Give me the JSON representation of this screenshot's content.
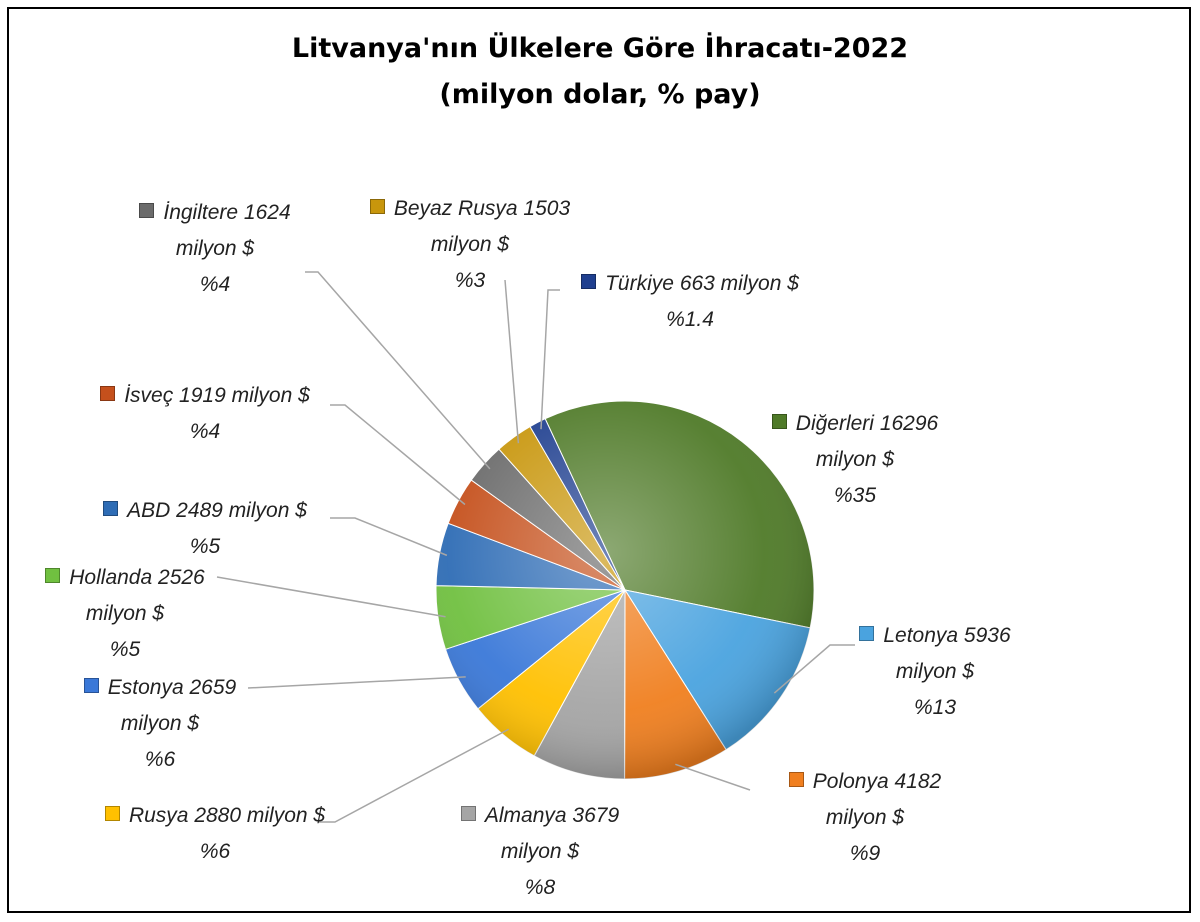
{
  "chart_data": {
    "type": "pie",
    "title": "Litvanya'nın Ülkelere Göre İhracatı-2022",
    "subtitle": "(milyon dolar, % pay)",
    "categories": [
      "Diğerleri",
      "Letonya",
      "Polonya",
      "Almanya",
      "Rusya",
      "Estonya",
      "Hollanda",
      "ABD",
      "İsveç",
      "İngiltere",
      "Beyaz Rusya",
      "Türkiye"
    ],
    "values": [
      16296,
      5936,
      4182,
      3679,
      2880,
      2659,
      2526,
      2489,
      1919,
      1624,
      1503,
      663
    ],
    "value_labels": [
      "16296 milyon $",
      "5936 milyon $",
      "4182 milyon $",
      "3679 milyon $",
      "2880 milyon $",
      "2659 milyon $",
      "2526 milyon $",
      "2489 milyon $",
      "1919 milyon $",
      "1624 milyon $",
      "1503 milyon $",
      "663 milyon $"
    ],
    "share_labels": [
      "%35",
      "%13",
      "%9",
      "%8",
      "%6",
      "%6",
      "%5",
      "%5",
      "%4",
      "%4",
      "%3",
      "%1.4"
    ],
    "colors": [
      "#4f7a28",
      "#4aa3df",
      "#f07f1f",
      "#a5a5a5",
      "#ffc000",
      "#3a78d8",
      "#70c040",
      "#2e6cb5",
      "#c5501c",
      "#6b6b6b",
      "#c8960c",
      "#1f3f8f"
    ]
  }
}
